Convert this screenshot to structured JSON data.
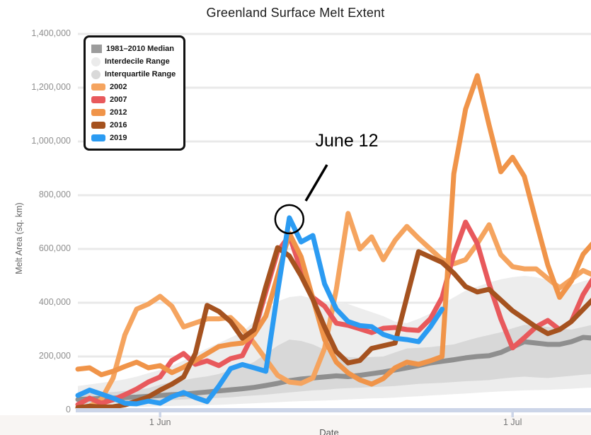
{
  "title": "Greenland Surface Melt Extent",
  "axes": {
    "y_title": "Melt Area (sq. km)",
    "x_title": "Date",
    "y_ticks": [
      {
        "value": 0,
        "label": "0"
      },
      {
        "value": 200000,
        "label": "200,000"
      },
      {
        "value": 400000,
        "label": "400,000"
      },
      {
        "value": 600000,
        "label": "600,000"
      },
      {
        "value": 800000,
        "label": "800,000"
      },
      {
        "value": 1000000,
        "label": "1,000,000"
      },
      {
        "value": 1200000,
        "label": "1,200,000"
      },
      {
        "value": 1400000,
        "label": "1,400,000"
      }
    ],
    "x_ticks": [
      {
        "label": "1 Jun",
        "day_index": 7
      },
      {
        "label": "1 Jul",
        "day_index": 37
      }
    ]
  },
  "legend": {
    "items": [
      {
        "label": "1981–2010 Median",
        "shape": "square",
        "color": "#9c9c9c"
      },
      {
        "label": "Interdecile Range",
        "shape": "circle",
        "color": "#ebebeb"
      },
      {
        "label": "Interquartile Range",
        "shape": "circle",
        "color": "#d9d9d9"
      },
      {
        "label": "2002",
        "shape": "line",
        "color": "#F5A45F"
      },
      {
        "label": "2007",
        "shape": "line",
        "color": "#E8595C"
      },
      {
        "label": "2012",
        "shape": "line",
        "color": "#F09449"
      },
      {
        "label": "2016",
        "shape": "line",
        "color": "#A5521F"
      },
      {
        "label": "2019",
        "shape": "line",
        "color": "#2B9BF2"
      }
    ]
  },
  "annotation": {
    "label": "June 12"
  },
  "chart_data": {
    "type": "line",
    "title": "Greenland Surface Melt Extent",
    "xlabel": "Date",
    "ylabel": "Melt Area (sq. km)",
    "ylim": [
      0,
      1400000
    ],
    "y_tick_step": 200000,
    "grid": "horizontal",
    "legend_position": "top-left",
    "x_axis": {
      "start_date": "May 25",
      "end_date": "Jul 8",
      "step_days": 1,
      "n_points": 45,
      "tick_labels": [
        "1 Jun",
        "1 Jul"
      ],
      "tick_day_indices": [
        7,
        37
      ]
    },
    "annotation": {
      "text": "June 12",
      "series": "2019",
      "day_index": 18,
      "date": "Jun 12",
      "value": 716000
    },
    "bands": {
      "interdecile": {
        "color": "#ededed",
        "upper": [
          90000,
          96000,
          102000,
          108000,
          115000,
          125000,
          138000,
          150000,
          165000,
          185000,
          210000,
          230000,
          250000,
          270000,
          290000,
          330000,
          370000,
          405000,
          421000,
          426000,
          415000,
          405000,
          403000,
          395000,
          380000,
          365000,
          350000,
          330000,
          324000,
          340000,
          360000,
          395000,
          420000,
          445000,
          460000,
          475000,
          487000,
          495000,
          500000,
          495000,
          485000,
          470000,
          465000,
          480000,
          490000
        ],
        "lower": [
          8000,
          9000,
          10000,
          11000,
          12000,
          13000,
          14000,
          15000,
          16000,
          17000,
          18000,
          19000,
          20000,
          22000,
          24000,
          26000,
          28000,
          30000,
          32000,
          34000,
          35000,
          36000,
          38000,
          40000,
          42000,
          44000,
          45000,
          47000,
          50000,
          52000,
          55000,
          57000,
          60000,
          62000,
          65000,
          68000,
          70000,
          72000,
          74000,
          75000,
          76000,
          78000,
          80000,
          83000,
          85000
        ]
      },
      "interquartile": {
        "color": "#d8d8d8",
        "upper": [
          60000,
          63000,
          66000,
          68000,
          72000,
          76000,
          82000,
          95000,
          105000,
          112000,
          120000,
          126000,
          135000,
          150000,
          160000,
          180000,
          210000,
          240000,
          263000,
          258000,
          245000,
          225000,
          210000,
          198000,
          195000,
          198000,
          200000,
          215000,
          230000,
          232000,
          235000,
          240000,
          245000,
          258000,
          270000,
          280000,
          290000,
          305000,
          318000,
          315000,
          310000,
          305000,
          300000,
          310000,
          320000
        ],
        "lower": [
          22000,
          24000,
          26000,
          28000,
          30000,
          32000,
          34000,
          35000,
          38000,
          40000,
          42000,
          44000,
          46000,
          48000,
          52000,
          55000,
          58000,
          62000,
          66000,
          70000,
          74000,
          76000,
          80000,
          82000,
          84000,
          86000,
          88000,
          90000,
          94000,
          98000,
          100000,
          102000,
          105000,
          108000,
          110000,
          112000,
          118000,
          122000,
          125000,
          122000,
          120000,
          124000,
          128000,
          132000,
          135000
        ]
      }
    },
    "median_1981_2010": {
      "color": "#8f8f8f",
      "values": [
        40000,
        42000,
        44000,
        45000,
        47000,
        49000,
        52000,
        55000,
        58000,
        60000,
        64000,
        68000,
        72000,
        76000,
        80000,
        85000,
        92000,
        100000,
        110000,
        116000,
        120000,
        124000,
        128000,
        125000,
        130000,
        136000,
        142000,
        150000,
        158000,
        166000,
        176000,
        182000,
        188000,
        195000,
        200000,
        203000,
        215000,
        235000,
        255000,
        250000,
        245000,
        245000,
        255000,
        271000,
        268000
      ]
    },
    "series": [
      {
        "name": "2002",
        "color": "#F5A45F",
        "values": [
          10000,
          15000,
          40000,
          120000,
          280000,
          376000,
          395000,
          424000,
          387000,
          310000,
          325000,
          340000,
          340000,
          345000,
          303000,
          250000,
          190000,
          130000,
          105000,
          100000,
          120000,
          230000,
          450000,
          732000,
          600000,
          645000,
          560000,
          632000,
          684000,
          640000,
          600000,
          560000,
          545000,
          560000,
          620000,
          690000,
          579000,
          534000,
          526000,
          526000,
          490000,
          455000,
          487000,
          520000,
          500000
        ]
      },
      {
        "name": "2007",
        "color": "#E8595C",
        "values": [
          21000,
          45000,
          26000,
          39000,
          58000,
          79000,
          105000,
          124000,
          185000,
          211000,
          171000,
          184000,
          166000,
          192000,
          203000,
          290000,
          440000,
          590000,
          650000,
          520000,
          420000,
          387000,
          324000,
          316000,
          303000,
          289000,
          305000,
          308000,
          300000,
          297000,
          340000,
          420000,
          580000,
          700000,
          620000,
          470000,
          340000,
          232000,
          270000,
          310000,
          334000,
          300000,
          330000,
          430000,
          500000
        ]
      },
      {
        "name": "2012",
        "color": "#F09449",
        "values": [
          153000,
          158000,
          132000,
          145000,
          163000,
          179000,
          158000,
          166000,
          140000,
          160000,
          185000,
          211000,
          237000,
          245000,
          250000,
          282000,
          350000,
          500000,
          658000,
          571000,
          416000,
          263000,
          179000,
          139000,
          113000,
          97000,
          118000,
          158000,
          179000,
          171000,
          184000,
          200000,
          880000,
          1120000,
          1245000,
          1061000,
          887000,
          941000,
          870000,
          703000,
          540000,
          420000,
          480000,
          580000,
          630000
        ]
      },
      {
        "name": "2016",
        "color": "#A5521F",
        "values": [
          10000,
          15000,
          12000,
          13000,
          20000,
          34000,
          50000,
          75000,
          97000,
          124000,
          211000,
          390000,
          368000,
          330000,
          268000,
          300000,
          460000,
          605000,
          574000,
          500000,
          413000,
          310000,
          218000,
          176000,
          185000,
          230000,
          240000,
          250000,
          420000,
          590000,
          570000,
          550000,
          510000,
          460000,
          440000,
          450000,
          410000,
          370000,
          340000,
          310000,
          285000,
          300000,
          330000,
          375000,
          420000
        ]
      },
      {
        "name": "2019",
        "color": "#2B9BF2",
        "values": [
          55000,
          75000,
          60000,
          45000,
          26000,
          24000,
          34000,
          26000,
          50000,
          66000,
          47000,
          32000,
          90000,
          155000,
          170000,
          158000,
          145000,
          440000,
          716000,
          626000,
          650000,
          470000,
          376000,
          330000,
          315000,
          311000,
          282000,
          268000,
          263000,
          255000,
          310000,
          376000,
          null,
          null,
          null,
          null,
          null,
          null,
          null,
          null,
          null,
          null,
          null,
          null,
          null
        ]
      }
    ]
  }
}
